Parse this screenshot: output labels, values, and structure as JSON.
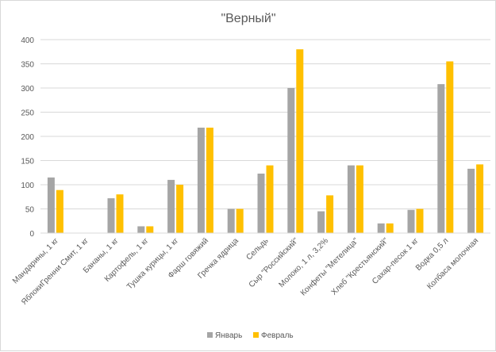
{
  "chart_data": {
    "type": "bar",
    "title": "\"Верный\"",
    "categories": [
      "Мандарины, 1 кг",
      "ЯблокиГренни Смит, 1 кг",
      "Бананы, 1 кг",
      "Картофель, 1 кг",
      "Тушка курицы, 1 кг",
      "Фарш говяжий",
      "Гречка ядрица",
      "Сельдь",
      "Сыр \"Российский\"",
      "Молоко, 1 л, 3,2%",
      "Конфеты \"Метелица\"",
      "Хлеб \"Крестьянский\"",
      "Сахар-песок 1 кг",
      "Водка 0,5 л",
      "Колбаса молочная"
    ],
    "series": [
      {
        "name": "Январь",
        "color": "#a5a5a5",
        "values": [
          115,
          0,
          72,
          14,
          110,
          218,
          50,
          123,
          300,
          45,
          140,
          20,
          48,
          308,
          133
        ]
      },
      {
        "name": "Февраль",
        "color": "#ffc000",
        "values": [
          89,
          0,
          80,
          14,
          100,
          218,
          50,
          140,
          380,
          78,
          140,
          20,
          50,
          355,
          142
        ]
      }
    ],
    "y_ticks": [
      "0",
      "50",
      "100",
      "150",
      "200",
      "250",
      "300",
      "350",
      "400"
    ],
    "ylim": [
      0,
      400
    ],
    "grid": true,
    "legend_position": "bottom",
    "xlabel": "",
    "ylabel": ""
  }
}
